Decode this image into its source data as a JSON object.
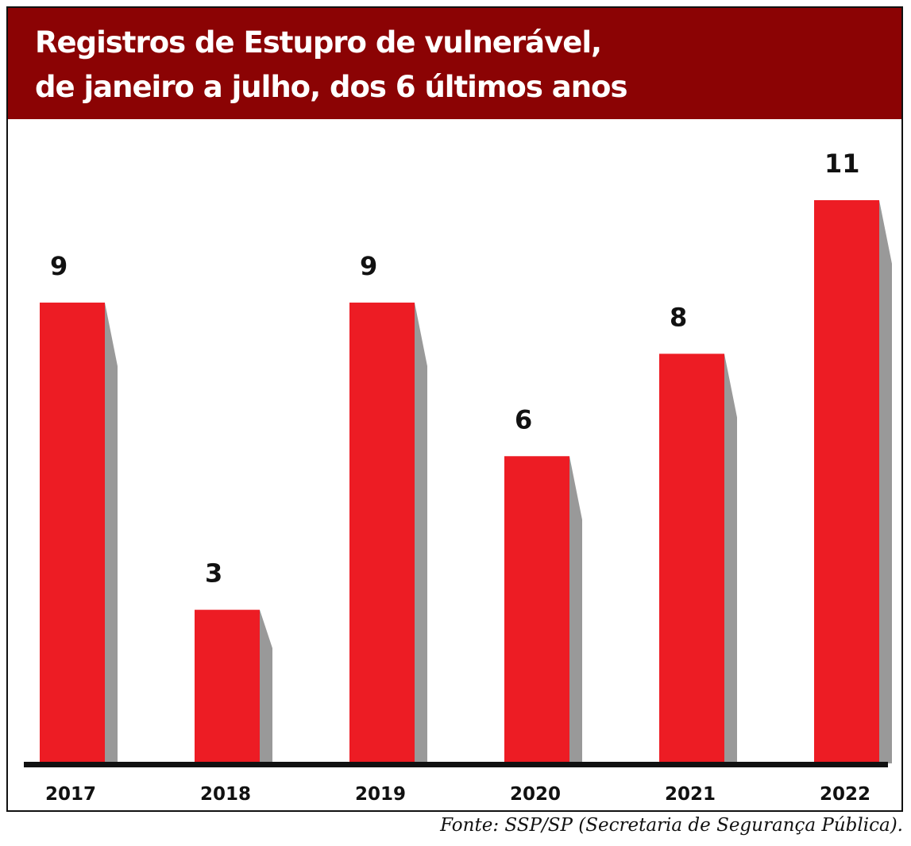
{
  "title_lines": [
    "Registros de Estupro de vulnerável,",
    "de janeiro a julho, dos 6 últimos anos"
  ],
  "source": "Fonte: SSP/SP (Secretaria de Segurança Pública).",
  "colors": {
    "title_background": "#8b0304",
    "bar": "#ed1c24",
    "bar_shadow": "#999999",
    "axis": "#111111"
  },
  "chart_data": {
    "type": "bar",
    "title": "Registros de Estupro de vulnerável, de janeiro a julho, dos 6 últimos anos",
    "categories": [
      "2017",
      "2018",
      "2019",
      "2020",
      "2021",
      "2022"
    ],
    "values": [
      9,
      3,
      9,
      6,
      8,
      11
    ],
    "data_labels": [
      "9",
      "3",
      "9",
      "6",
      "8",
      "11"
    ],
    "xlabel": "",
    "ylabel": "",
    "ylim": [
      0,
      11
    ],
    "grid": false,
    "legend": "none"
  }
}
